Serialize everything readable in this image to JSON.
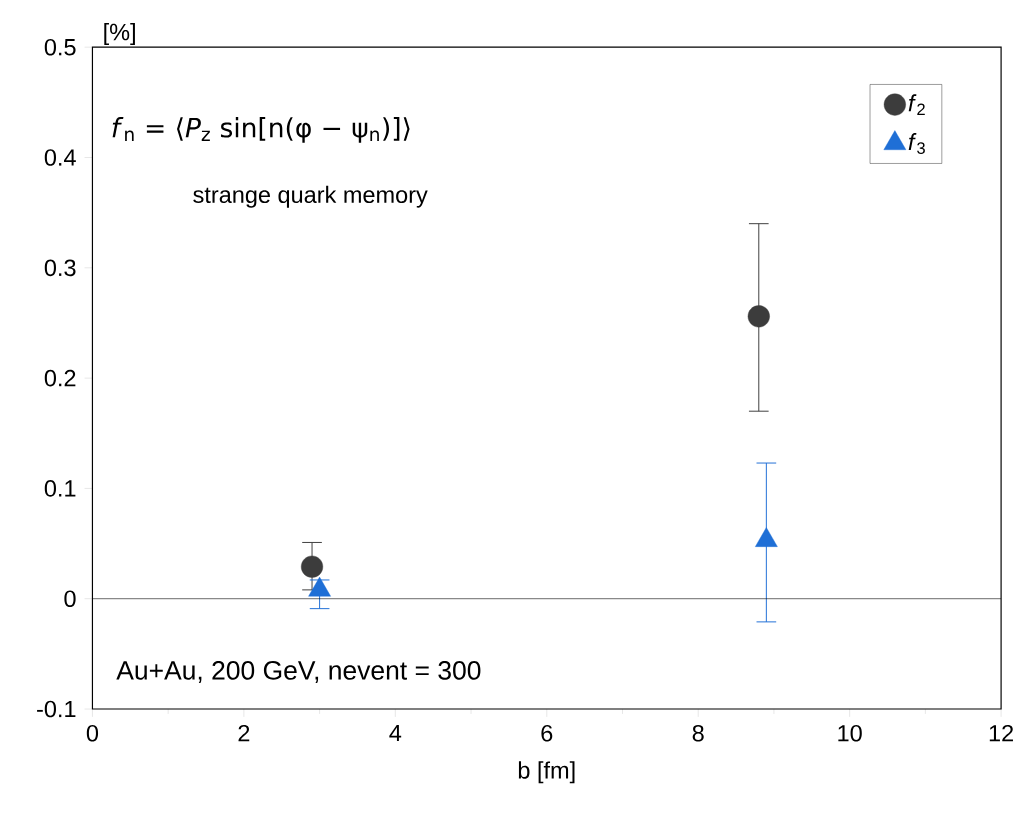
{
  "chart_data": {
    "type": "scatter",
    "xlabel": "b [fm]",
    "ylabel": "[%]",
    "xlim": [
      0,
      12
    ],
    "xticks": [
      0,
      2,
      4,
      6,
      8,
      10,
      12
    ],
    "ylim": [
      -0.1,
      0.5
    ],
    "yticks": [
      -0.1,
      0,
      0.1,
      0.2,
      0.3,
      0.4,
      0.5
    ],
    "series": [
      {
        "name": "*f*$_{2}$",
        "color": "#3c3c3c",
        "marker": "circle",
        "x": [
          2.9,
          8.8
        ],
        "values": [
          0.029,
          0.256
        ],
        "errors": [
          [
            0.008,
            0.051
          ],
          [
            0.17,
            0.34
          ]
        ]
      },
      {
        "name": "*f*$_{3}$",
        "color": "#1f6fd6",
        "marker": "triangle",
        "x": [
          3.0,
          8.9
        ],
        "values": [
          0.008,
          0.053
        ],
        "errors": [
          [
            -0.009,
            0.017
          ],
          [
            -0.021,
            0.123
          ]
        ]
      }
    ],
    "ref_lines": [
      {
        "axis": "y",
        "value": 0,
        "color": "#000000"
      }
    ],
    "annotations": [
      "*f*$_{n}$ = ⟨*P*$_{z}$ sin[n(φ − ψ$_{n}$)]⟩",
      "strange quark memory",
      "Au+Au, 200 GeV, nevent = 300"
    ],
    "legend": "top right",
    "grid": false
  }
}
